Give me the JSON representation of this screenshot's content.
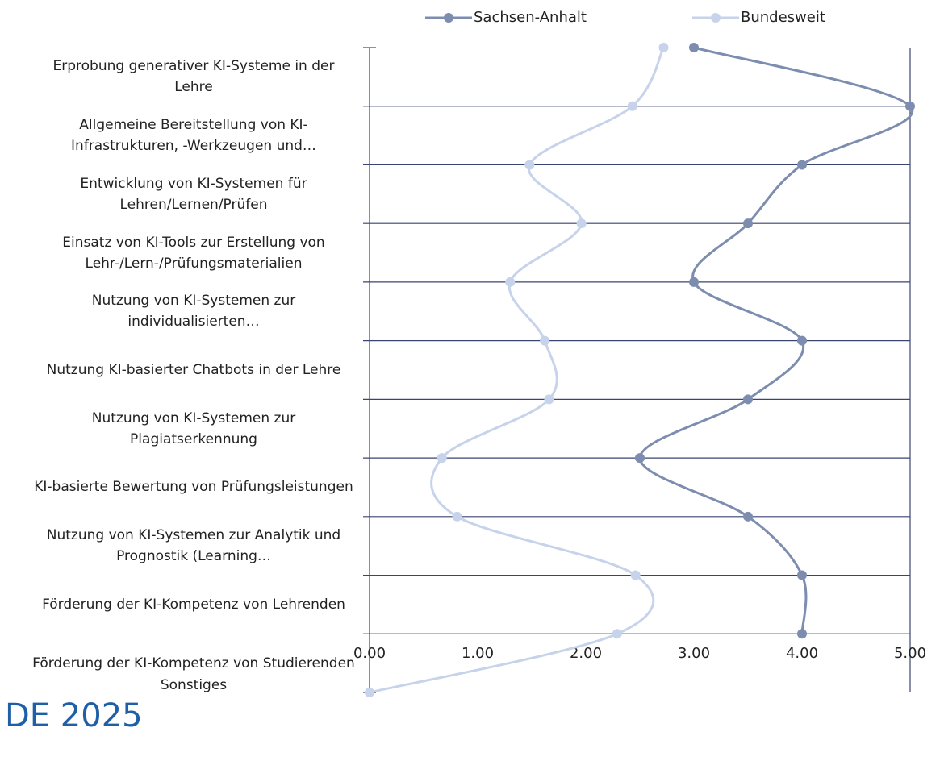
{
  "chart_data": {
    "type": "line",
    "annotation": "DE 2025",
    "categories": [
      "Erprobung generativer KI-Systeme in der Lehre",
      "Allgemeine Bereitstellung von KI-Infrastrukturen, -Werkzeugen und…",
      "Entwicklung von KI-Systemen für Lehren/Lernen/Prüfen",
      "Einsatz von KI-Tools zur Erstellung von Lehr-/Lern-/Prüfungsmaterialien",
      "Nutzung von KI-Systemen zur individualisierten…",
      "Nutzung KI-basierter Chatbots in der Lehre",
      "Nutzung von KI-Systemen zur Plagiatserkennung",
      "KI-basierte Bewertung von Prüfungsleistungen",
      "Nutzung von KI-Systemen zur Analytik und Prognostik (Learning…",
      "Förderung der KI-Kompetenz von Lehrenden",
      "Förderung der KI-Kompetenz von Studierenden",
      "Sonstiges"
    ],
    "series": [
      {
        "name": "Sachsen-Anhalt",
        "color": "#7d8db0",
        "values": [
          3.0,
          5.0,
          4.0,
          3.5,
          3.0,
          4.0,
          3.5,
          2.5,
          3.5,
          4.0,
          4.0,
          null
        ]
      },
      {
        "name": "Bundesweit",
        "color": "#c6d3ea",
        "values": [
          2.72,
          2.43,
          1.48,
          1.96,
          1.3,
          1.62,
          1.66,
          0.67,
          0.81,
          2.46,
          2.29,
          0
        ]
      }
    ],
    "xlim": [
      0,
      5
    ],
    "xticks": [
      {
        "value": 0,
        "label": "0.00"
      },
      {
        "value": 1,
        "label": "1.00"
      },
      {
        "value": 2,
        "label": "2.00"
      },
      {
        "value": 3,
        "label": "3.00"
      },
      {
        "value": 4,
        "label": "4.00"
      },
      {
        "value": 5,
        "label": "5.00"
      }
    ],
    "grid": true,
    "legend": "top"
  }
}
